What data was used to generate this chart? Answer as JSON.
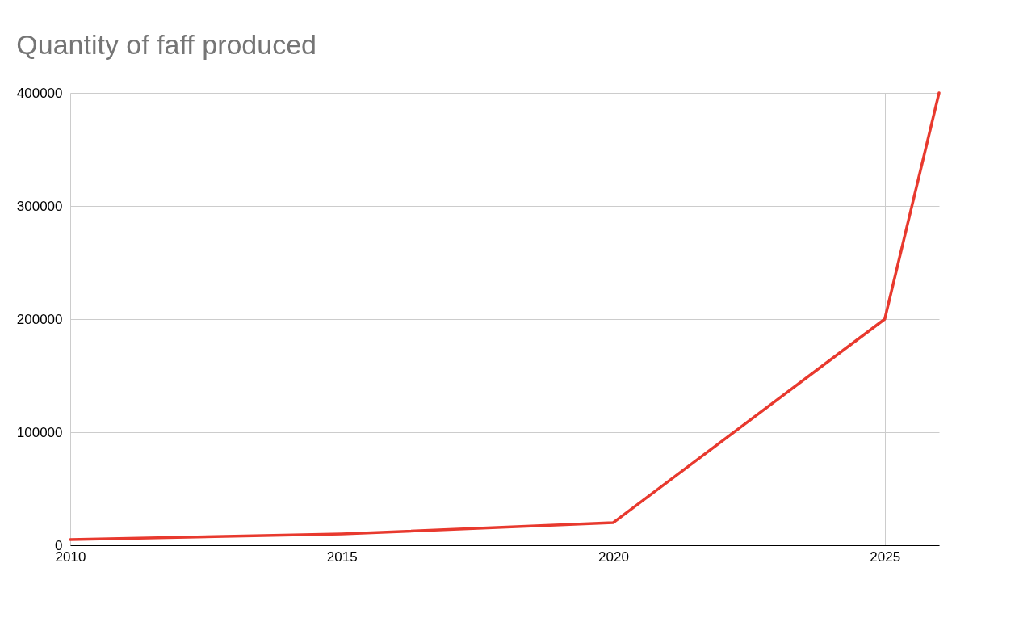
{
  "chart_data": {
    "type": "line",
    "title": "Quantity of faff produced",
    "x": [
      2010,
      2015,
      2020,
      2025,
      2026
    ],
    "series": [
      {
        "color": "#e8392e",
        "values": [
          5000,
          10000,
          20000,
          200000,
          400000
        ]
      }
    ],
    "xlim": [
      2010,
      2026
    ],
    "xticks": [
      2010,
      2015,
      2020,
      2025
    ],
    "ylim": [
      0,
      400000
    ],
    "yticks": [
      0,
      100000,
      200000,
      300000,
      400000
    ],
    "grid": true,
    "legend": false,
    "marker": "none",
    "line_style": "solid"
  }
}
